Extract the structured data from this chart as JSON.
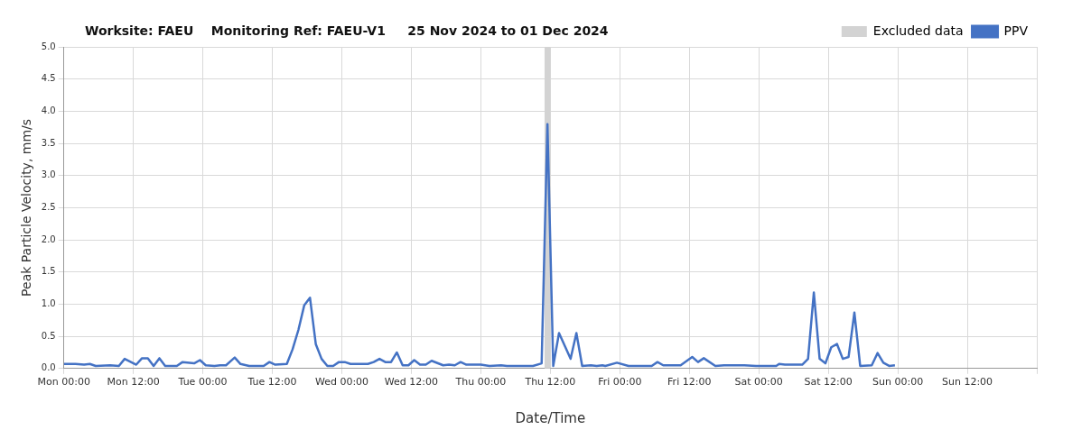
{
  "chart_data": {
    "type": "line",
    "title": "Worksite: FAEU    Monitoring Ref: FAEU-V1     25 Nov 2024 to 01 Dec 2024",
    "xlabel": "Date/Time",
    "ylabel": "Peak Particle Velocity, mm/s",
    "xlim": [
      "2024-11-25T00:00",
      "2024-12-02T00:00"
    ],
    "xticks": [
      {
        "value": "2024-11-25T00:00",
        "label": "Mon 00:00"
      },
      {
        "value": "2024-11-25T12:00",
        "label": "Mon 12:00"
      },
      {
        "value": "2024-11-26T00:00",
        "label": "Tue 00:00"
      },
      {
        "value": "2024-11-26T12:00",
        "label": "Tue 12:00"
      },
      {
        "value": "2024-11-27T00:00",
        "label": "Wed 00:00"
      },
      {
        "value": "2024-11-27T12:00",
        "label": "Wed 12:00"
      },
      {
        "value": "2024-11-28T00:00",
        "label": "Thu 00:00"
      },
      {
        "value": "2024-11-28T12:00",
        "label": "Thu 12:00"
      },
      {
        "value": "2024-11-29T00:00",
        "label": "Fri 00:00"
      },
      {
        "value": "2024-11-29T12:00",
        "label": "Fri 12:00"
      },
      {
        "value": "2024-11-30T00:00",
        "label": "Sat 00:00"
      },
      {
        "value": "2024-11-30T12:00",
        "label": "Sat 12:00"
      },
      {
        "value": "2024-12-01T00:00",
        "label": "Sun 00:00"
      },
      {
        "value": "2024-12-01T12:00",
        "label": "Sun 12:00"
      },
      {
        "value": "2024-12-02T00:00",
        "label": null
      }
    ],
    "ylim": [
      0,
      5
    ],
    "yticks": [
      {
        "value": 0,
        "label": "0.0"
      },
      {
        "value": 0.5,
        "label": "0.5"
      },
      {
        "value": 1,
        "label": "1.0"
      },
      {
        "value": 1.5,
        "label": "1.5"
      },
      {
        "value": 2,
        "label": "2.0"
      },
      {
        "value": 2.5,
        "label": "2.5"
      },
      {
        "value": 3,
        "label": "3.0"
      },
      {
        "value": 3.5,
        "label": "3.5"
      },
      {
        "value": 4,
        "label": "4.0"
      },
      {
        "value": 4.5,
        "label": "4.5"
      },
      {
        "value": 5,
        "label": "5.0"
      }
    ],
    "grid": true,
    "legend": "top right",
    "marker": "none",
    "line_style": "solid",
    "bands": [
      {
        "axis": "x",
        "from": "2024-11-28T11:00",
        "to": "2024-11-28T12:00",
        "label": "Excluded data",
        "color": "#d3d3d3"
      }
    ],
    "series": [
      {
        "name": "PPV",
        "color": "#4472c4",
        "x": [
          "2024-11-25T00:00",
          "2024-11-25T02:00",
          "2024-11-25T03:30",
          "2024-11-25T04:30",
          "2024-11-25T05:30",
          "2024-11-25T08:00",
          "2024-11-25T09:30",
          "2024-11-25T10:30",
          "2024-11-25T12:30",
          "2024-11-25T13:30",
          "2024-11-25T14:30",
          "2024-11-25T15:30",
          "2024-11-25T16:30",
          "2024-11-25T17:30",
          "2024-11-25T19:30",
          "2024-11-25T20:30",
          "2024-11-25T22:30",
          "2024-11-25T23:30",
          "2024-11-26T00:30",
          "2024-11-26T02:00",
          "2024-11-26T03:00",
          "2024-11-26T04:00",
          "2024-11-26T05:30",
          "2024-11-26T06:30",
          "2024-11-26T08:00",
          "2024-11-26T10:30",
          "2024-11-26T11:30",
          "2024-11-26T12:30",
          "2024-11-26T14:30",
          "2024-11-26T15:30",
          "2024-11-26T16:30",
          "2024-11-26T17:30",
          "2024-11-26T18:30",
          "2024-11-26T19:30",
          "2024-11-26T20:30",
          "2024-11-26T21:30",
          "2024-11-26T22:30",
          "2024-11-26T23:30",
          "2024-11-27T00:30",
          "2024-11-27T01:30",
          "2024-11-27T04:30",
          "2024-11-27T05:30",
          "2024-11-27T06:30",
          "2024-11-27T07:30",
          "2024-11-27T08:30",
          "2024-11-27T09:30",
          "2024-11-27T10:30",
          "2024-11-27T11:30",
          "2024-11-27T12:30",
          "2024-11-27T13:30",
          "2024-11-27T14:30",
          "2024-11-27T15:30",
          "2024-11-27T17:30",
          "2024-11-27T18:30",
          "2024-11-27T19:30",
          "2024-11-27T20:30",
          "2024-11-27T21:30",
          "2024-11-28T00:00",
          "2024-11-28T01:30",
          "2024-11-28T03:30",
          "2024-11-28T04:30",
          "2024-11-28T09:00",
          "2024-11-28T10:30",
          "2024-11-28T11:30",
          "2024-11-28T12:30",
          "2024-11-28T13:30",
          "2024-11-28T15:30",
          "2024-11-28T16:30",
          "2024-11-28T17:30",
          "2024-11-28T19:00",
          "2024-11-28T20:00",
          "2024-11-28T21:00",
          "2024-11-28T21:30",
          "2024-11-28T23:30",
          "2024-11-29T01:30",
          "2024-11-29T05:30",
          "2024-11-29T06:30",
          "2024-11-29T07:30",
          "2024-11-29T10:30",
          "2024-11-29T12:30",
          "2024-11-29T13:30",
          "2024-11-29T14:30",
          "2024-11-29T16:30",
          "2024-11-29T18:00",
          "2024-11-29T21:30",
          "2024-11-29T23:30",
          "2024-11-30T03:00",
          "2024-11-30T03:30",
          "2024-11-30T04:30",
          "2024-11-30T07:30",
          "2024-11-30T08:30",
          "2024-11-30T09:30",
          "2024-11-30T10:30",
          "2024-11-30T11:30",
          "2024-11-30T12:30",
          "2024-11-30T13:30",
          "2024-11-30T14:30",
          "2024-11-30T15:30",
          "2024-11-30T16:30",
          "2024-11-30T17:30",
          "2024-11-30T19:30",
          "2024-11-30T20:30",
          "2024-11-30T21:30",
          "2024-11-30T22:30",
          "2024-11-30T23:30"
        ],
        "values": [
          0.07,
          0.07,
          0.06,
          0.07,
          0.04,
          0.05,
          0.04,
          0.15,
          0.06,
          0.16,
          0.16,
          0.04,
          0.16,
          0.04,
          0.04,
          0.1,
          0.08,
          0.13,
          0.05,
          0.04,
          0.05,
          0.05,
          0.17,
          0.07,
          0.04,
          0.04,
          0.1,
          0.06,
          0.07,
          0.3,
          0.6,
          0.98,
          1.1,
          0.38,
          0.15,
          0.04,
          0.04,
          0.1,
          0.1,
          0.07,
          0.07,
          0.1,
          0.15,
          0.1,
          0.1,
          0.25,
          0.05,
          0.05,
          0.13,
          0.06,
          0.06,
          0.12,
          0.05,
          0.06,
          0.05,
          0.1,
          0.06,
          0.06,
          0.04,
          0.05,
          0.04,
          0.04,
          0.08,
          3.8,
          0.04,
          0.55,
          0.15,
          0.55,
          0.04,
          0.05,
          0.04,
          0.05,
          0.04,
          0.09,
          0.04,
          0.04,
          0.1,
          0.05,
          0.05,
          0.18,
          0.1,
          0.16,
          0.04,
          0.05,
          0.05,
          0.04,
          0.04,
          0.07,
          0.06,
          0.06,
          0.15,
          1.18,
          0.15,
          0.08,
          0.33,
          0.38,
          0.15,
          0.18,
          0.87,
          0.04,
          0.05,
          0.24,
          0.09,
          0.04,
          0.05
        ]
      }
    ]
  }
}
